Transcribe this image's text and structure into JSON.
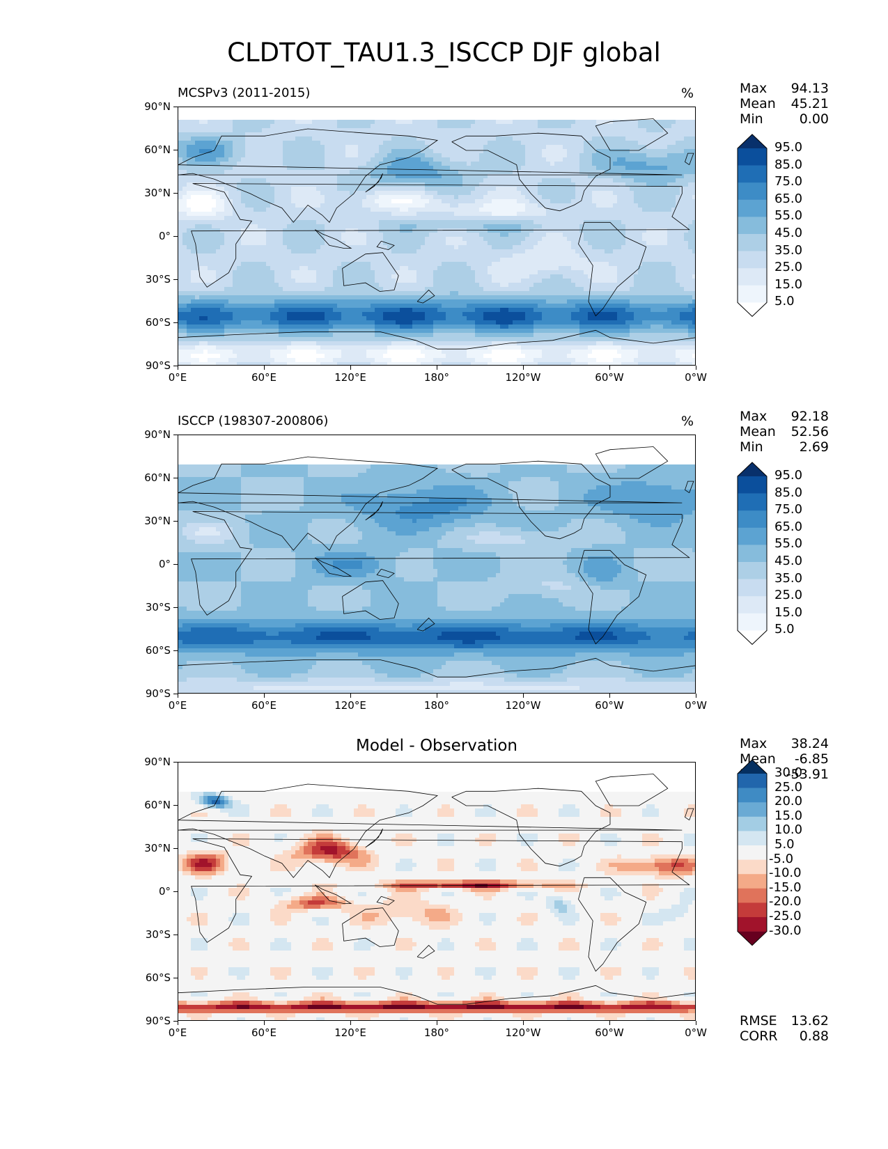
{
  "figure": {
    "title": "CLDTOT_TAU1.3_ISCCP DJF global"
  },
  "axes": {
    "lat_ticks": [
      "90°N",
      "60°N",
      "30°N",
      "0°",
      "30°S",
      "60°S",
      "90°S"
    ],
    "lon_ticks": [
      "0°E",
      "60°E",
      "120°E",
      "180°",
      "120°W",
      "60°W",
      "0°W"
    ]
  },
  "panels": [
    {
      "id": "model",
      "left_title": "MCSPv3 (2011-2015)",
      "center_title": "",
      "units": "%",
      "stats": [
        {
          "label": "Max",
          "value": "94.13"
        },
        {
          "label": "Mean",
          "value": "45.21"
        },
        {
          "label": "Min",
          "value": "0.00"
        }
      ],
      "colorbar": {
        "levels": [
          "95.0",
          "85.0",
          "75.0",
          "65.0",
          "55.0",
          "45.0",
          "35.0",
          "25.0",
          "15.0",
          "5.0"
        ],
        "colors": [
          "#08306b",
          "#0b4f9c",
          "#1f6eb5",
          "#3d8cc6",
          "#5ca3d2",
          "#86bcdc",
          "#adcfe6",
          "#c8dcf0",
          "#dde9f6",
          "#eef5fc",
          "#ffffff"
        ]
      },
      "field": "model"
    },
    {
      "id": "obs",
      "left_title": "ISCCP (198307-200806)",
      "center_title": "",
      "units": "%",
      "stats": [
        {
          "label": "Max",
          "value": "92.18"
        },
        {
          "label": "Mean",
          "value": "52.56"
        },
        {
          "label": "Min",
          "value": "2.69"
        }
      ],
      "colorbar": {
        "levels": [
          "95.0",
          "85.0",
          "75.0",
          "65.0",
          "55.0",
          "45.0",
          "35.0",
          "25.0",
          "15.0",
          "5.0"
        ],
        "colors": [
          "#08306b",
          "#0b4f9c",
          "#1f6eb5",
          "#3d8cc6",
          "#5ca3d2",
          "#86bcdc",
          "#adcfe6",
          "#c8dcf0",
          "#dde9f6",
          "#eef5fc",
          "#ffffff"
        ]
      },
      "field": "obs"
    },
    {
      "id": "diff",
      "left_title": "",
      "center_title": "Model - Observation",
      "units": "",
      "stats": [
        {
          "label": "Max",
          "value": "38.24"
        },
        {
          "label": "Mean",
          "value": "-6.85"
        },
        {
          "label": "Min",
          "value": "-53.91"
        }
      ],
      "extra_stats": [
        {
          "label": "RMSE",
          "value": "13.62"
        },
        {
          "label": "CORR",
          "value": "0.88"
        }
      ],
      "colorbar": {
        "levels": [
          "30.0",
          "25.0",
          "20.0",
          "15.0",
          "10.0",
          "5.0",
          "-5.0",
          "-10.0",
          "-15.0",
          "-20.0",
          "-25.0",
          "-30.0"
        ],
        "colors": [
          "#053061",
          "#2166ac",
          "#3f8bc4",
          "#6aaad4",
          "#a3cde4",
          "#d4e6f1",
          "#f4f4f4",
          "#fbdac8",
          "#f4aa88",
          "#e0735b",
          "#c43b3a",
          "#a1132b",
          "#67001f"
        ]
      },
      "field": "diff"
    }
  ]
}
